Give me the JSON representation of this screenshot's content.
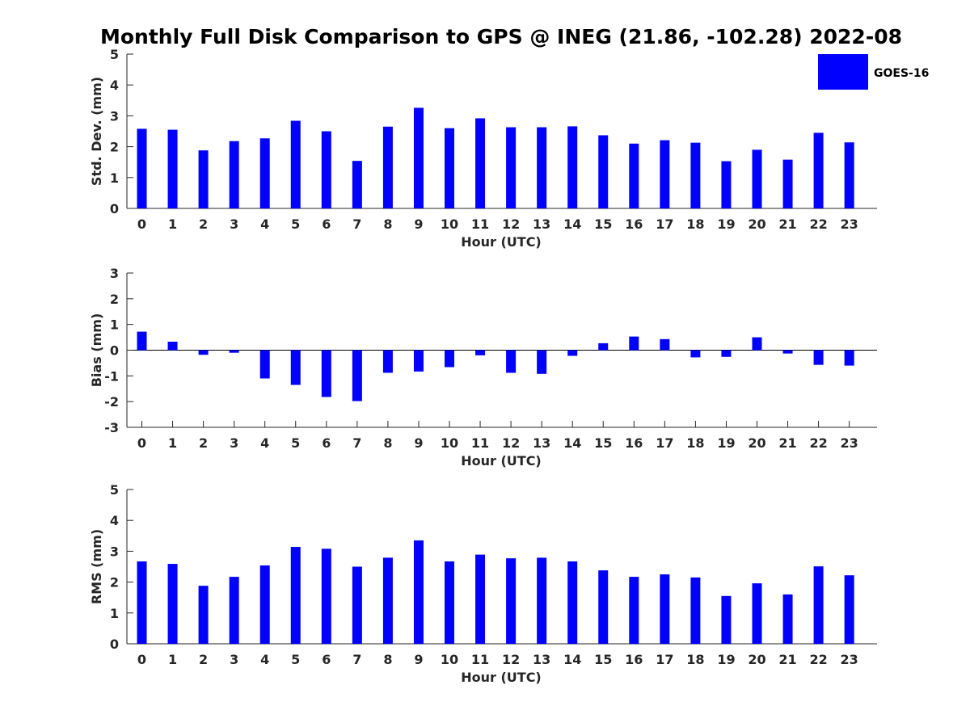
{
  "title": "Monthly Full Disk Comparison to GPS @ INEG (21.86, -102.28) 2022-08",
  "legend": {
    "label": "GOES-16",
    "placement": "top-right"
  },
  "colors": {
    "bar": "#0000ff",
    "axis": "#262626",
    "text": "#000000"
  },
  "chart_data": [
    {
      "type": "bar",
      "title": "Monthly Full Disk Comparison to GPS @ INEG (21.86, -102.28) 2022-08",
      "xlabel": "Hour (UTC)",
      "ylabel": "Std. Dev. (mm)",
      "ylim": [
        0,
        5
      ],
      "yticks": [
        0,
        1,
        2,
        3,
        4,
        5
      ],
      "grid": false,
      "categories": [
        "0",
        "1",
        "2",
        "3",
        "4",
        "5",
        "6",
        "7",
        "8",
        "9",
        "10",
        "11",
        "12",
        "13",
        "14",
        "15",
        "16",
        "17",
        "18",
        "19",
        "20",
        "21",
        "22",
        "23"
      ],
      "series": [
        {
          "name": "GOES-16",
          "values": [
            2.58,
            2.55,
            1.88,
            2.18,
            2.27,
            2.84,
            2.5,
            1.54,
            2.65,
            3.26,
            2.6,
            2.92,
            2.63,
            2.63,
            2.66,
            2.37,
            2.1,
            2.21,
            2.13,
            1.53,
            1.9,
            1.58,
            2.45,
            2.14
          ]
        }
      ]
    },
    {
      "type": "bar",
      "xlabel": "Hour (UTC)",
      "ylabel": "Bias (mm)",
      "ylim": [
        -3,
        3
      ],
      "yticks": [
        -3,
        -2,
        -1,
        0,
        1,
        2,
        3
      ],
      "grid": false,
      "categories": [
        "0",
        "1",
        "2",
        "3",
        "4",
        "5",
        "6",
        "7",
        "8",
        "9",
        "10",
        "11",
        "12",
        "13",
        "14",
        "15",
        "16",
        "17",
        "18",
        "19",
        "20",
        "21",
        "22",
        "23"
      ],
      "series": [
        {
          "name": "GOES-16",
          "values": [
            0.72,
            0.33,
            -0.18,
            -0.1,
            -1.1,
            -1.35,
            -1.82,
            -1.98,
            -0.88,
            -0.83,
            -0.66,
            -0.2,
            -0.88,
            -0.92,
            -0.22,
            0.27,
            0.53,
            0.43,
            -0.28,
            -0.26,
            0.5,
            -0.13,
            -0.57,
            -0.6
          ]
        }
      ]
    },
    {
      "type": "bar",
      "xlabel": "Hour (UTC)",
      "ylabel": "RMS (mm)",
      "ylim": [
        0,
        5
      ],
      "yticks": [
        0,
        1,
        2,
        3,
        4,
        5
      ],
      "grid": false,
      "categories": [
        "0",
        "1",
        "2",
        "3",
        "4",
        "5",
        "6",
        "7",
        "8",
        "9",
        "10",
        "11",
        "12",
        "13",
        "14",
        "15",
        "16",
        "17",
        "18",
        "19",
        "20",
        "21",
        "22",
        "23"
      ],
      "series": [
        {
          "name": "GOES-16",
          "values": [
            2.67,
            2.59,
            1.88,
            2.17,
            2.54,
            3.14,
            3.08,
            2.5,
            2.79,
            3.35,
            2.67,
            2.89,
            2.77,
            2.79,
            2.67,
            2.38,
            2.17,
            2.25,
            2.15,
            1.55,
            1.96,
            1.6,
            2.51,
            2.22
          ]
        }
      ]
    }
  ]
}
